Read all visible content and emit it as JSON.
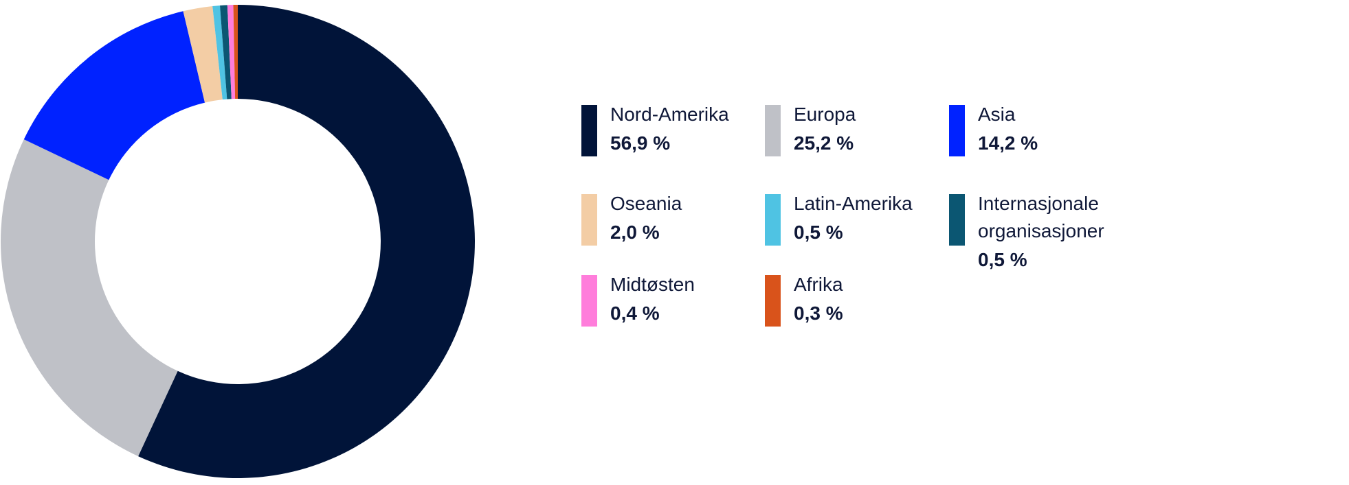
{
  "chart_data": {
    "type": "pie",
    "subtype": "donut",
    "title": "",
    "start_angle": "top, clockwise",
    "legend_placement": "right",
    "series": [
      {
        "name": "Nord-Amerika",
        "value": 56.9,
        "label": "56,9 %",
        "color": "#011439"
      },
      {
        "name": "Europa",
        "value": 25.2,
        "label": "25,2 %",
        "color": "#bfc1c7"
      },
      {
        "name": "Asia",
        "value": 14.2,
        "label": "14,2 %",
        "color": "#0022ff"
      },
      {
        "name": "Oseania",
        "value": 2.0,
        "label": "2,0 %",
        "color": "#f3cda5"
      },
      {
        "name": "Latin-Amerika",
        "value": 0.5,
        "label": "0,5 %",
        "color": "#4fc3e3"
      },
      {
        "name": "Internasjonale\norganisasjoner",
        "value": 0.5,
        "label": "0,5 %",
        "color": "#0b5672"
      },
      {
        "name": "Midtøsten",
        "value": 0.4,
        "label": "0,4 %",
        "color": "#ff7ddb"
      },
      {
        "name": "Afrika",
        "value": 0.3,
        "label": "0,3 %",
        "color": "#d9531b"
      }
    ]
  }
}
